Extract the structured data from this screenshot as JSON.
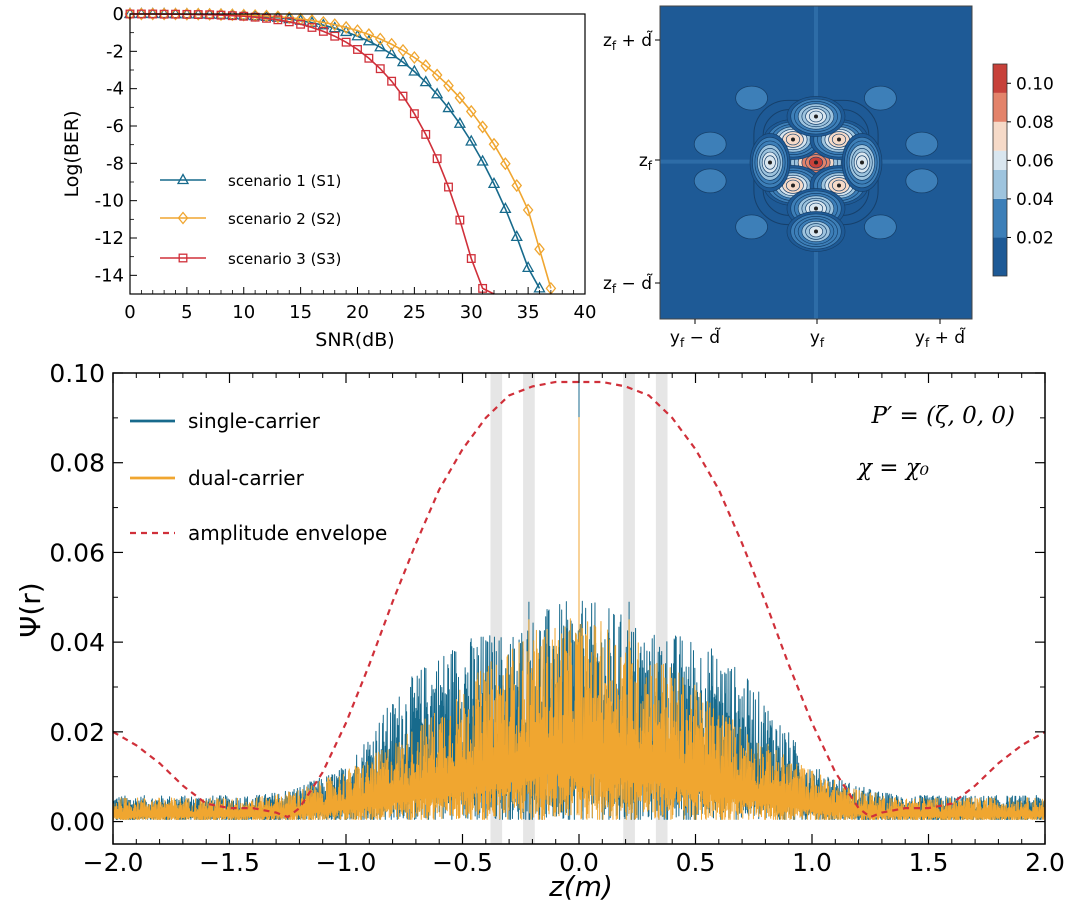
{
  "chart_data": [
    {
      "type": "line",
      "xlabel": "SNR(dB)",
      "ylabel": "Log(BER)",
      "xlim": [
        0,
        40
      ],
      "ylim": [
        -15,
        0
      ],
      "xticks": [
        "0",
        "5",
        "10",
        "15",
        "20",
        "25",
        "30",
        "35",
        "40"
      ],
      "yticks": [
        "0",
        "-2",
        "-4",
        "-6",
        "-8",
        "-10",
        "-12",
        "-14"
      ],
      "legend_position": "center-left",
      "series": [
        {
          "name": "scenario 1 (S1)",
          "color": "#176a8c",
          "marker": "triangle",
          "x": [
            0,
            1,
            2,
            3,
            4,
            5,
            6,
            7,
            8,
            9,
            10,
            11,
            12,
            13,
            14,
            15,
            16,
            17,
            18,
            19,
            20,
            21,
            22,
            23,
            24,
            25,
            26,
            27,
            28,
            29,
            30,
            31,
            32,
            33,
            34,
            35,
            36
          ],
          "y": [
            0,
            0,
            0,
            0,
            -0.01,
            -0.01,
            -0.02,
            -0.03,
            -0.04,
            -0.06,
            -0.08,
            -0.11,
            -0.15,
            -0.2,
            -0.27,
            -0.36,
            -0.47,
            -0.6,
            -0.76,
            -0.96,
            -1.19,
            -1.46,
            -1.78,
            -2.15,
            -2.58,
            -3.08,
            -3.65,
            -4.3,
            -5.04,
            -5.88,
            -6.83,
            -7.9,
            -9.1,
            -10.44,
            -11.94,
            -13.6,
            -14.7
          ]
        },
        {
          "name": "scenario 2 (S2)",
          "color": "#f0a630",
          "marker": "diamond",
          "x": [
            0,
            1,
            2,
            3,
            4,
            5,
            6,
            7,
            8,
            9,
            10,
            11,
            12,
            13,
            14,
            15,
            16,
            17,
            18,
            19,
            20,
            21,
            22,
            23,
            24,
            25,
            26,
            27,
            28,
            29,
            30,
            31,
            32,
            33,
            34,
            35,
            36,
            37
          ],
          "y": [
            0,
            0,
            0,
            0,
            0,
            -0.01,
            -0.01,
            -0.02,
            -0.03,
            -0.04,
            -0.06,
            -0.08,
            -0.11,
            -0.15,
            -0.2,
            -0.27,
            -0.35,
            -0.45,
            -0.57,
            -0.72,
            -0.89,
            -1.1,
            -1.34,
            -1.62,
            -1.95,
            -2.33,
            -2.77,
            -3.27,
            -3.84,
            -4.49,
            -5.22,
            -6.05,
            -6.98,
            -8.02,
            -9.19,
            -10.5,
            -12.6,
            -14.7
          ]
        },
        {
          "name": "scenario 3 (S3)",
          "color": "#d0303a",
          "marker": "square",
          "x": [
            0,
            1,
            2,
            3,
            4,
            5,
            6,
            7,
            8,
            9,
            10,
            11,
            12,
            13,
            14,
            15,
            16,
            17,
            18,
            19,
            20,
            21,
            22,
            23,
            24,
            25,
            26,
            27,
            28,
            29,
            30,
            31,
            32
          ],
          "y": [
            0,
            0,
            0,
            -0.01,
            -0.01,
            -0.02,
            -0.03,
            -0.04,
            -0.06,
            -0.09,
            -0.12,
            -0.17,
            -0.23,
            -0.31,
            -0.42,
            -0.55,
            -0.72,
            -0.93,
            -1.19,
            -1.51,
            -1.9,
            -2.37,
            -2.93,
            -3.6,
            -4.4,
            -5.34,
            -6.45,
            -7.75,
            -9.27,
            -11.04,
            -13.1,
            -14.7,
            -15
          ]
        }
      ]
    },
    {
      "type": "heatmap",
      "xticks": [
        "y_f − d̃",
        "y_f",
        "y_f + d̃"
      ],
      "yticks": [
        "z_f + d̃",
        "z_f",
        "z_f − d̃"
      ],
      "xtick_parts": [
        {
          "base": "y",
          "sub": "f",
          "rest": " − d̃"
        },
        {
          "base": "y",
          "sub": "f",
          "rest": ""
        },
        {
          "base": "y",
          "sub": "f",
          "rest": " + d̃"
        }
      ],
      "ytick_parts": [
        {
          "base": "z",
          "sub": "f",
          "rest": " + d̃"
        },
        {
          "base": "z",
          "sub": "f",
          "rest": ""
        },
        {
          "base": "z",
          "sub": "f",
          "rest": " − d̃"
        }
      ],
      "colorbar": {
        "ticks": [
          "0.02",
          "0.04",
          "0.06",
          "0.08",
          "0.10"
        ],
        "range": [
          0,
          0.11
        ],
        "levels": [
          0,
          0.02,
          0.04,
          0.055,
          0.065,
          0.08,
          0.095,
          0.11
        ],
        "colors": [
          "#1e5a96",
          "#3d7fb8",
          "#9ec4de",
          "#d9e6ef",
          "#f6dac8",
          "#e3836a",
          "#c7413a"
        ]
      },
      "peaks": [
        {
          "y": 0,
          "z": 0,
          "value": 0.108
        },
        {
          "y": -0.5,
          "z": 0.5,
          "value": 0.075
        },
        {
          "y": 0.5,
          "z": 0.5,
          "value": 0.075
        },
        {
          "y": -0.5,
          "z": -0.5,
          "value": 0.075
        },
        {
          "y": 0.5,
          "z": -0.5,
          "value": 0.075
        },
        {
          "y": 0,
          "z": 1,
          "value": 0.064
        },
        {
          "y": 0,
          "z": -1,
          "value": 0.064
        },
        {
          "y": 1,
          "z": 0,
          "value": 0.064
        },
        {
          "y": -1,
          "z": 0,
          "value": 0.064
        },
        {
          "y": 0,
          "z": -1.5,
          "value": 0.06
        }
      ]
    },
    {
      "type": "line",
      "xlabel": "z(m)",
      "ylabel": "Ψ(r)",
      "xlim": [
        -2,
        2
      ],
      "ylim": [
        -0.005,
        0.1
      ],
      "xticks": [
        "−2.0",
        "−1.5",
        "−1.0",
        "−0.5",
        "0.0",
        "0.5",
        "1.0",
        "1.5",
        "2.0"
      ],
      "yticks": [
        "0.00",
        "0.02",
        "0.04",
        "0.06",
        "0.08",
        "0.10"
      ],
      "legend_position": "top-left",
      "annotations": [
        "P′ = (ζ, 0, 0)",
        "χ = χ₀"
      ],
      "shaded_bands": [
        [
          -0.38,
          -0.33
        ],
        [
          -0.24,
          -0.19
        ],
        [
          0.19,
          0.24
        ],
        [
          0.33,
          0.38
        ]
      ],
      "peaks": [
        {
          "z": 0,
          "value": 0.098
        },
        {
          "z": -0.215,
          "value": 0.049
        },
        {
          "z": 0.215,
          "value": 0.049
        },
        {
          "z": -0.355,
          "value": 0.038
        },
        {
          "z": 0.355,
          "value": 0.038
        }
      ],
      "series": [
        {
          "name": "single-carrier",
          "color": "#176a8c",
          "style": "solid"
        },
        {
          "name": "dual-carrier",
          "color": "#f0a630",
          "style": "solid"
        },
        {
          "name": "amplitude envelope",
          "color": "#d0303a",
          "style": "dashed",
          "x": [
            -2.0,
            -1.9,
            -1.8,
            -1.7,
            -1.6,
            -1.5,
            -1.4,
            -1.3,
            -1.25,
            -1.2,
            -1.1,
            -1.0,
            -0.9,
            -0.8,
            -0.7,
            -0.6,
            -0.5,
            -0.4,
            -0.3,
            -0.2,
            -0.1,
            0.0,
            0.1,
            0.2,
            0.3,
            0.4,
            0.5,
            0.6,
            0.7,
            0.8,
            0.9,
            1.0,
            1.1,
            1.2,
            1.25,
            1.3,
            1.4,
            1.5,
            1.6,
            1.7,
            1.8,
            1.9,
            2.0
          ],
          "y": [
            0.02,
            0.017,
            0.013,
            0.008,
            0.004,
            0.003,
            0.003,
            0.002,
            0.001,
            0.003,
            0.011,
            0.022,
            0.035,
            0.049,
            0.062,
            0.074,
            0.083,
            0.09,
            0.095,
            0.097,
            0.098,
            0.098,
            0.098,
            0.097,
            0.095,
            0.09,
            0.083,
            0.074,
            0.062,
            0.049,
            0.035,
            0.022,
            0.011,
            0.003,
            0.001,
            0.002,
            0.003,
            0.003,
            0.004,
            0.008,
            0.013,
            0.017,
            0.02
          ]
        }
      ]
    }
  ]
}
